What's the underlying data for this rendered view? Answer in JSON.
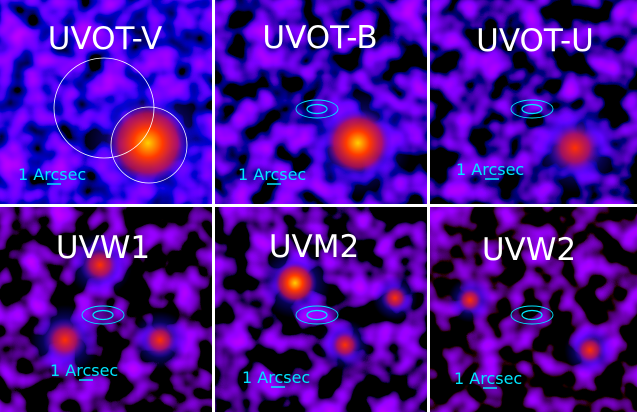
{
  "panels": [
    {
      "title": "UVOT-V",
      "scale_label": "1 Arcsec"
    },
    {
      "title": "UVOT-B",
      "scale_label": "1 Arcsec"
    },
    {
      "title": "UVOT-U",
      "scale_label": "1 Arcsec"
    },
    {
      "title": "UVW1",
      "scale_label": "1 Arcsec"
    },
    {
      "title": "UVM2",
      "scale_label": "1 Arcsec"
    },
    {
      "title": "UVW2",
      "scale_label": "1 Arcsec"
    }
  ]
}
